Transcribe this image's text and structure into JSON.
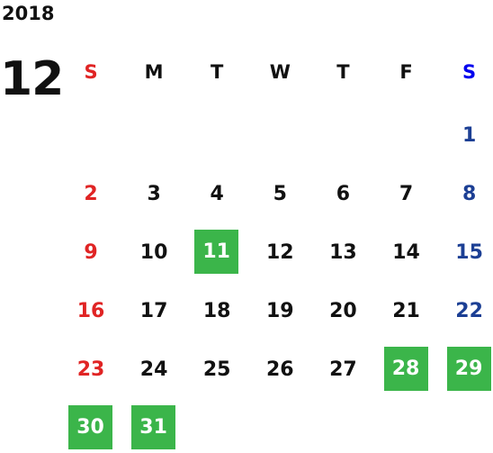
{
  "year": "2018",
  "month": "12",
  "weekdays": [
    "S",
    "M",
    "T",
    "W",
    "T",
    "F",
    "S"
  ],
  "weeks": [
    [
      null,
      null,
      null,
      null,
      null,
      null,
      "1"
    ],
    [
      "2",
      "3",
      "4",
      "5",
      "6",
      "7",
      "8"
    ],
    [
      "9",
      "10",
      {
        "day": "11",
        "marked": true
      },
      "12",
      "13",
      "14",
      "15"
    ],
    [
      "16",
      "17",
      "18",
      "19",
      "20",
      "21",
      "22"
    ],
    [
      "23",
      "24",
      "25",
      "26",
      "27",
      {
        "day": "28",
        "marked": true
      },
      {
        "day": "29",
        "marked": true
      }
    ],
    [
      {
        "day": "30",
        "marked": true
      },
      {
        "day": "31",
        "marked": true
      }
    ]
  ]
}
